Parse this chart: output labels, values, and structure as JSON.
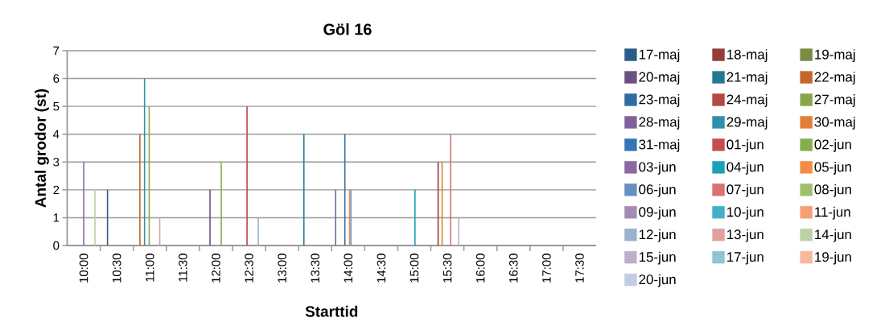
{
  "chart_data": {
    "type": "bar",
    "title": "Göl 16",
    "xlabel": "Starttid",
    "ylabel": "Antal grodor (st)",
    "xlim": [
      9.75,
      17.75
    ],
    "ylim": [
      0,
      7
    ],
    "yticks": [
      0,
      1,
      2,
      3,
      4,
      5,
      6,
      7
    ],
    "xticks": [
      {
        "value": 10,
        "label": "10:00"
      },
      {
        "value": 10.5,
        "label": "10:30"
      },
      {
        "value": 11,
        "label": "11:00"
      },
      {
        "value": 11.5,
        "label": "11:30"
      },
      {
        "value": 12,
        "label": "12:00"
      },
      {
        "value": 12.5,
        "label": "12:30"
      },
      {
        "value": 13,
        "label": "13:00"
      },
      {
        "value": 13.5,
        "label": "13:30"
      },
      {
        "value": 14,
        "label": "14:00"
      },
      {
        "value": 14.5,
        "label": "14:30"
      },
      {
        "value": 15,
        "label": "15:00"
      },
      {
        "value": 15.5,
        "label": "15:30"
      },
      {
        "value": 16,
        "label": "16:00"
      },
      {
        "value": 16.5,
        "label": "16:30"
      },
      {
        "value": 17,
        "label": "17:00"
      },
      {
        "value": 17.5,
        "label": "17:30"
      },
      {
        "value": 10.25,
        "label": null
      },
      {
        "value": 10.75,
        "label": null
      },
      {
        "value": 11.25,
        "label": null
      },
      {
        "value": 11.75,
        "label": null
      },
      {
        "value": 12.25,
        "label": null
      },
      {
        "value": 12.75,
        "label": null
      },
      {
        "value": 13.25,
        "label": null
      },
      {
        "value": 13.75,
        "label": null
      },
      {
        "value": 14.25,
        "label": null
      },
      {
        "value": 14.75,
        "label": null
      },
      {
        "value": 15.25,
        "label": null
      },
      {
        "value": 15.75,
        "label": null
      },
      {
        "value": 16.25,
        "label": null
      },
      {
        "value": 16.75,
        "label": null
      },
      {
        "value": 17.25,
        "label": null
      }
    ],
    "grid": "y",
    "legend": "right",
    "series": [
      {
        "name": "17-maj",
        "color": "#2c5d8a",
        "x": [
          10.36
        ],
        "values": [
          2
        ]
      },
      {
        "name": "18-maj",
        "color": "#963c3b",
        "x": [
          15.36
        ],
        "values": [
          3
        ]
      },
      {
        "name": "19-maj",
        "color": "#7b8c41"
      },
      {
        "name": "20-maj",
        "color": "#6a527f",
        "x": [
          11.91
        ],
        "values": [
          2
        ]
      },
      {
        "name": "21-maj",
        "color": "#217a91",
        "x": [
          13.33
        ],
        "values": [
          4
        ]
      },
      {
        "name": "22-maj",
        "color": "#c4672a",
        "x": [
          10.85
        ],
        "values": [
          4
        ]
      },
      {
        "name": "23-maj",
        "color": "#2e6ca4",
        "x": [
          13.95
        ],
        "values": [
          4
        ]
      },
      {
        "name": "24-maj",
        "color": "#b44844",
        "x": [
          12.47
        ],
        "values": [
          5
        ]
      },
      {
        "name": "27-maj",
        "color": "#8aa64a",
        "x": [
          10.99
        ],
        "values": [
          5
        ]
      },
      {
        "name": "28-maj",
        "color": "#7f629b",
        "x": [
          13.81
        ],
        "values": [
          2
        ]
      },
      {
        "name": "29-maj",
        "color": "#2c91a9",
        "x": [
          10.92
        ],
        "values": [
          6
        ]
      },
      {
        "name": "30-maj",
        "color": "#e07f35",
        "x": [
          15.42
        ],
        "values": [
          3
        ]
      },
      {
        "name": "31-maj",
        "color": "#3476b3"
      },
      {
        "name": "01-jun",
        "color": "#c34f4c"
      },
      {
        "name": "02-jun",
        "color": "#85ad4b",
        "x": [
          12.08
        ],
        "values": [
          3
        ]
      },
      {
        "name": "03-jun",
        "color": "#8b69a0",
        "x": [
          10.0
        ],
        "values": [
          3
        ]
      },
      {
        "name": "04-jun",
        "color": "#1a9fb6",
        "x": [
          15.01
        ],
        "values": [
          2
        ]
      },
      {
        "name": "05-jun",
        "color": "#f48c45",
        "x": [
          14.02
        ],
        "values": [
          2
        ]
      },
      {
        "name": "06-jun",
        "color": "#6590c2",
        "x": [
          14.04
        ],
        "values": [
          2
        ]
      },
      {
        "name": "07-jun",
        "color": "#d87270",
        "x": [
          15.55
        ],
        "values": [
          4
        ]
      },
      {
        "name": "08-jun",
        "color": "#a0c070"
      },
      {
        "name": "09-jun",
        "color": "#a48ab5"
      },
      {
        "name": "10-jun",
        "color": "#45afc5"
      },
      {
        "name": "11-jun",
        "color": "#f5a072"
      },
      {
        "name": "12-jun",
        "color": "#9ab1d0",
        "x": [
          12.64
        ],
        "values": [
          1
        ]
      },
      {
        "name": "13-jun",
        "color": "#e0a0a0",
        "x": [
          11.15
        ],
        "values": [
          1
        ]
      },
      {
        "name": "14-jun",
        "color": "#bcd1a4",
        "x": [
          10.17
        ],
        "values": [
          2
        ]
      },
      {
        "name": "15-jun",
        "color": "#bbb0cb",
        "x": [
          15.67
        ],
        "values": [
          1
        ]
      },
      {
        "name": "17-jun",
        "color": "#8ec5d3"
      },
      {
        "name": "19-jun",
        "color": "#f7b99d"
      },
      {
        "name": "20-jun",
        "color": "#c0cde3"
      }
    ]
  }
}
